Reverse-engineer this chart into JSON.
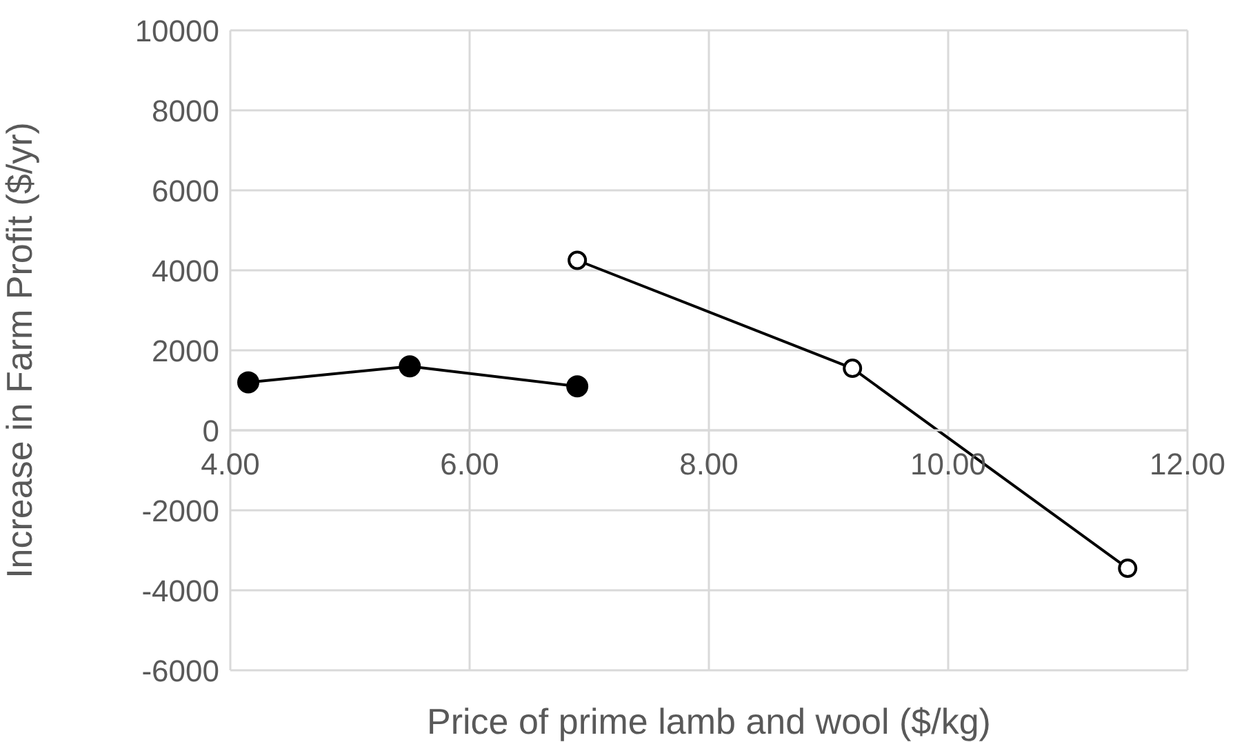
{
  "chart_data": {
    "type": "line",
    "xlabel": "Price of prime lamb and wool ($/kg)",
    "ylabel": "Increase in Farm Profit ($/yr)",
    "series": [
      {
        "color": "#000000",
        "x": [
          4.15,
          5.5,
          6.9
        ],
        "values": [
          1200,
          1600,
          1100
        ]
      },
      {
        "color": "#000000",
        "x": [
          6.9,
          9.2,
          11.5
        ],
        "values": [
          4250,
          1550,
          -3450
        ]
      }
    ],
    "xlim": [
      4,
      12
    ],
    "xticks": [
      {
        "value": 4,
        "label": "4.00"
      },
      {
        "value": 6,
        "label": "6.00"
      },
      {
        "value": 8,
        "label": "8.00"
      },
      {
        "value": 10,
        "label": "10.00"
      },
      {
        "value": 12,
        "label": "12.00"
      }
    ],
    "ylim": [
      -6000,
      10000
    ],
    "yticks": [
      -6000,
      -4000,
      -2000,
      0,
      2000,
      4000,
      6000,
      8000,
      10000
    ],
    "grid": true,
    "marker": "circle",
    "line_style": "solid"
  }
}
